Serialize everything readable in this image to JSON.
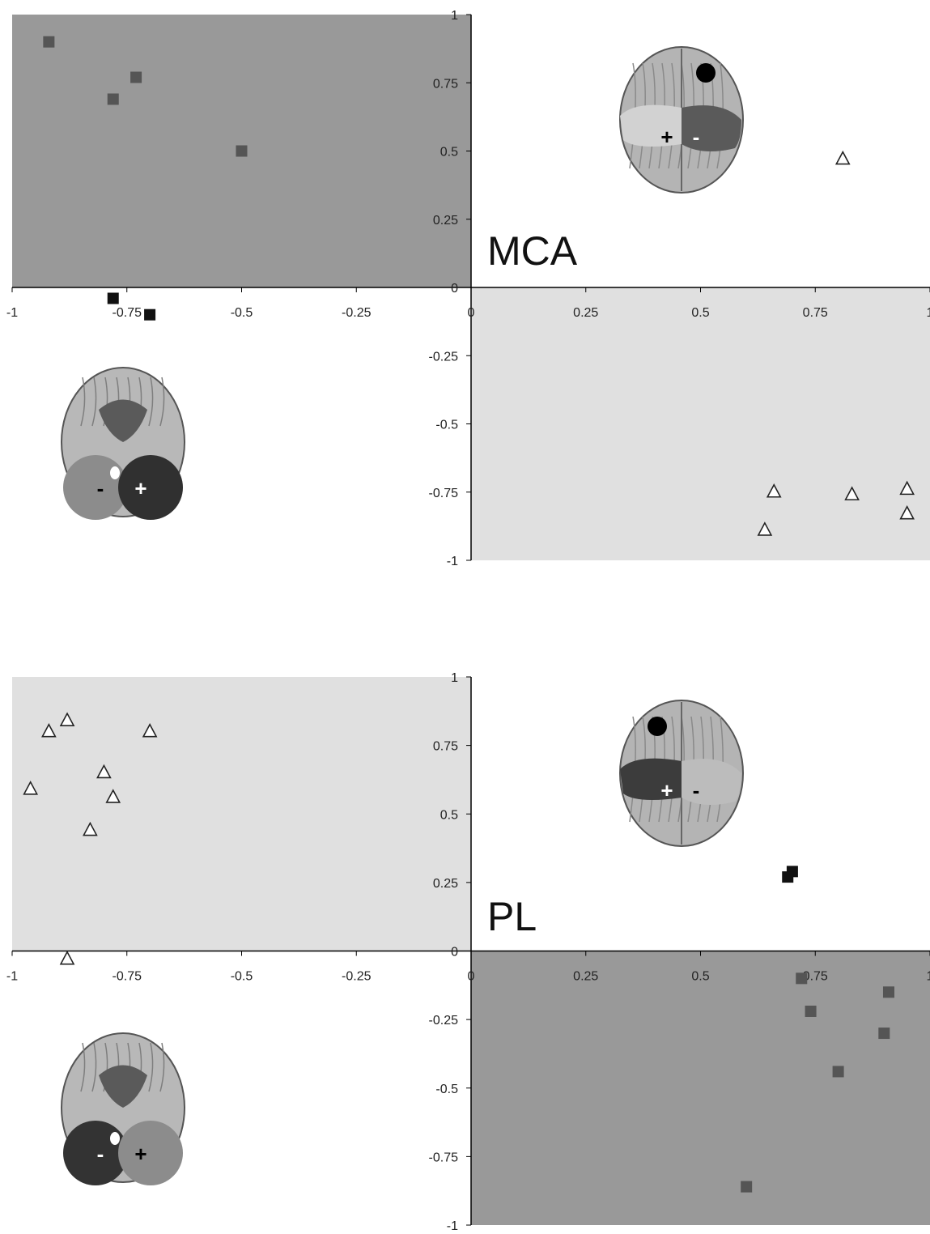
{
  "chart_data": [
    {
      "type": "scatter",
      "title": "MCA",
      "xlim": [
        -1,
        1
      ],
      "ylim": [
        -1,
        1
      ],
      "x_ticks": [
        "-1",
        "-0.75",
        "-0.5",
        "-0.25",
        "0",
        "0.25",
        "0.5",
        "0.75",
        "1"
      ],
      "y_ticks": [
        "1",
        "0.75",
        "0.5",
        "0.25",
        "0",
        "-0.25",
        "-0.5",
        "-0.75",
        "-1"
      ],
      "shaded_quadrants": [
        {
          "quadrant": "top-left",
          "color": "#999999"
        },
        {
          "quadrant": "bottom-right",
          "color": "#e0e0e0"
        }
      ],
      "series": [
        {
          "marker": "square",
          "color": "#555555",
          "points": [
            [
              -0.92,
              0.9
            ],
            [
              -0.73,
              0.77
            ],
            [
              -0.78,
              0.69
            ],
            [
              -0.5,
              0.5
            ]
          ]
        },
        {
          "marker": "square",
          "color": "#111111",
          "points": [
            [
              -0.78,
              -0.04
            ],
            [
              -0.7,
              -0.1
            ]
          ]
        },
        {
          "marker": "triangle",
          "color": "#222222",
          "points": [
            [
              0.81,
              0.47
            ],
            [
              0.66,
              -0.75
            ],
            [
              0.83,
              -0.76
            ],
            [
              0.95,
              -0.74
            ],
            [
              0.95,
              -0.83
            ],
            [
              0.64,
              -0.89
            ]
          ]
        }
      ],
      "brains": [
        {
          "view": "top",
          "position": "top-right",
          "left_sign": "+",
          "right_sign": "-",
          "left_color": "#d2d2d2",
          "right_color": "#5a5a5a"
        },
        {
          "view": "bottom",
          "position": "bottom-left",
          "left_sign": "-",
          "right_sign": "+",
          "left_color": "#8c8c8c",
          "right_color": "#303030"
        }
      ]
    },
    {
      "type": "scatter",
      "title": "PL",
      "xlim": [
        -1,
        1
      ],
      "ylim": [
        -1,
        1
      ],
      "x_ticks": [
        "-1",
        "-0.75",
        "-0.5",
        "-0.25",
        "0",
        "0.25",
        "0.5",
        "0.75",
        "1"
      ],
      "y_ticks": [
        "1",
        "0.75",
        "0.5",
        "0.25",
        "0",
        "-0.25",
        "-0.5",
        "-0.75",
        "-1"
      ],
      "shaded_quadrants": [
        {
          "quadrant": "top-left",
          "color": "#e0e0e0"
        },
        {
          "quadrant": "bottom-right",
          "color": "#999999"
        }
      ],
      "series": [
        {
          "marker": "triangle",
          "color": "#222222",
          "points": [
            [
              -0.92,
              0.8
            ],
            [
              -0.88,
              0.84
            ],
            [
              -0.7,
              0.8
            ],
            [
              -0.8,
              0.65
            ],
            [
              -0.96,
              0.59
            ],
            [
              -0.78,
              0.56
            ],
            [
              -0.83,
              0.44
            ],
            [
              -0.88,
              -0.03
            ]
          ]
        },
        {
          "marker": "square",
          "color": "#111111",
          "points": [
            [
              0.7,
              0.29
            ],
            [
              0.69,
              0.27
            ]
          ]
        },
        {
          "marker": "square",
          "color": "#555555",
          "points": [
            [
              0.72,
              -0.1
            ],
            [
              0.74,
              -0.22
            ],
            [
              0.91,
              -0.15
            ],
            [
              0.9,
              -0.3
            ],
            [
              0.8,
              -0.44
            ],
            [
              0.6,
              -0.86
            ]
          ]
        }
      ],
      "brains": [
        {
          "view": "top",
          "position": "top-right",
          "left_sign": "+",
          "right_sign": "-",
          "left_color": "#3c3c3c",
          "right_color": "#bcbcbc"
        },
        {
          "view": "bottom",
          "position": "bottom-left",
          "left_sign": "-",
          "right_sign": "+",
          "left_color": "#333333",
          "right_color": "#8c8c8c"
        }
      ]
    }
  ]
}
